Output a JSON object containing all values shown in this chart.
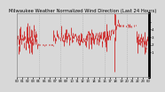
{
  "title": "Milwaukee Weather Normalized Wind Direction (Last 24 Hours)",
  "background_color": "#d8d8d8",
  "plot_bg_color": "#d8d8d8",
  "line_color": "#cc0000",
  "grid_color": "#aaaaaa",
  "border_color": "#000000",
  "title_fontsize": 3.8,
  "tick_fontsize": 3.0,
  "ylim": [
    -290,
    460
  ],
  "ytick_vals": [
    0,
    90,
    180,
    270,
    360
  ],
  "ytick_labels": [
    "1",
    "2",
    "3",
    "4",
    ""
  ],
  "n_points": 288,
  "n_grids": 6,
  "lw": 0.5
}
